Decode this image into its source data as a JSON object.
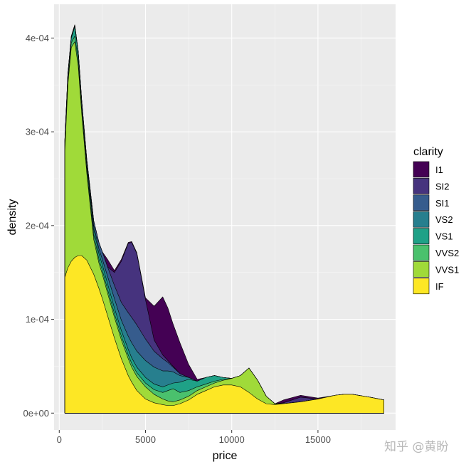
{
  "chart_data": {
    "type": "area",
    "stacked": true,
    "xlabel": "price",
    "ylabel": "density",
    "xlim": [
      -300,
      19500
    ],
    "ylim": [
      -1.8e-05,
      0.000436
    ],
    "x_ticks": [
      0,
      5000,
      10000,
      15000
    ],
    "x_tick_labels": [
      "0",
      "5000",
      "10000",
      "15000"
    ],
    "y_ticks": [
      0,
      0.0001,
      0.0002,
      0.0003,
      0.0004
    ],
    "y_tick_labels": [
      "0e+00",
      "1e-04",
      "2e-04",
      "3e-04",
      "4e-04"
    ],
    "grid": true,
    "legend_position": "right",
    "legend_title": "clarity",
    "x": [
      326,
      500,
      700,
      900,
      1100,
      1300,
      1600,
      2000,
      2300,
      2500,
      2800,
      3200,
      3600,
      4000,
      4200,
      4500,
      5000,
      5500,
      6000,
      6300,
      6600,
      7000,
      7500,
      8000,
      8500,
      9000,
      9500,
      10000,
      10500,
      11000,
      11500,
      12000,
      12500,
      13000,
      14000,
      15000,
      16000,
      16500,
      17000,
      18000,
      18823
    ],
    "series": [
      {
        "name": "IF",
        "color": "#FDE725",
        "values": [
          0.000145,
          0.000155,
          0.000162,
          0.000166,
          0.000168,
          0.000168,
          0.000163,
          0.000148,
          0.000133,
          0.000122,
          0.000104,
          8e-05,
          5.8e-05,
          4e-05,
          3.3e-05,
          2.4e-05,
          1.5e-05,
          1.1e-05,
          9e-06,
          8e-06,
          8e-06,
          1e-05,
          1.4e-05,
          2e-05,
          2.4e-05,
          2.8e-05,
          3e-05,
          3e-05,
          2.8e-05,
          2.2e-05,
          1.5e-05,
          1e-05,
          9e-06,
          1e-05,
          1.2e-05,
          1.5e-05,
          1.9e-05,
          2e-05,
          2e-05,
          1.7e-05,
          1.4e-05
        ]
      },
      {
        "name": "VVS1",
        "color": "#A0DA39",
        "values": [
          0.00028,
          0.00035,
          0.00039,
          0.000396,
          0.00037,
          0.00032,
          0.000255,
          0.000185,
          0.00016,
          0.000148,
          0.000128,
          0.000102,
          7.8e-05,
          5.8e-05,
          4.9e-05,
          3.9e-05,
          2.8e-05,
          2e-05,
          1.5e-05,
          1.3e-05,
          1.2e-05,
          1.4e-05,
          1.8e-05,
          2.4e-05,
          2.8e-05,
          3.2e-05,
          3.5e-05,
          3.7e-05,
          4e-05,
          4.8e-05,
          3.5e-05,
          1.8e-05,
          1e-05,
          1e-05,
          1.2e-05,
          1.5e-05,
          1.9e-05,
          2e-05,
          2e-05,
          1.7e-05,
          1.4e-05
        ]
      },
      {
        "name": "VVS2",
        "color": "#4AC16D",
        "values": [
          0.000285,
          0.000355,
          0.000395,
          0.000402,
          0.000376,
          0.000326,
          0.00026,
          0.00019,
          0.000164,
          0.000152,
          0.000132,
          0.000106,
          8.2e-05,
          6.2e-05,
          5.3e-05,
          4.3e-05,
          3.2e-05,
          2.5e-05,
          2.2e-05,
          2.4e-05,
          2.6e-05,
          2.2e-05,
          2.4e-05,
          2.8e-05,
          3.1e-05,
          3.4e-05,
          3.6e-05,
          3.7e-05,
          4e-05,
          4.8e-05,
          3.5e-05,
          1.8e-05,
          1e-05,
          1e-05,
          1.2e-05,
          1.5e-05,
          1.9e-05,
          2e-05,
          2e-05,
          1.7e-05,
          1.4e-05
        ]
      },
      {
        "name": "VS1",
        "color": "#1FA187",
        "values": [
          0.00029,
          0.00036,
          0.0004,
          0.000412,
          0.000384,
          0.000332,
          0.000266,
          0.000196,
          0.00017,
          0.000158,
          0.000138,
          0.000112,
          8.8e-05,
          6.8e-05,
          5.9e-05,
          4.9e-05,
          3.8e-05,
          3.1e-05,
          2.8e-05,
          3e-05,
          3.2e-05,
          3.3e-05,
          3.6e-05,
          3.4e-05,
          3.8e-05,
          4e-05,
          3.8e-05,
          3.7e-05,
          4e-05,
          4.8e-05,
          3.5e-05,
          1.8e-05,
          1e-05,
          1e-05,
          1.2e-05,
          1.5e-05,
          1.9e-05,
          2e-05,
          2e-05,
          1.7e-05,
          1.4e-05
        ]
      },
      {
        "name": "VS2",
        "color": "#277F8E",
        "values": [
          0.000291,
          0.000361,
          0.000401,
          0.000413,
          0.000385,
          0.000333,
          0.000268,
          0.0002,
          0.000175,
          0.000164,
          0.000146,
          0.000122,
          9.9e-05,
          8.2e-05,
          7.5e-05,
          6.6e-05,
          5.6e-05,
          4.9e-05,
          4.5e-05,
          4.5e-05,
          4.4e-05,
          4e-05,
          3.8e-05,
          3.4e-05,
          3.8e-05,
          4e-05,
          3.8e-05,
          3.7e-05,
          4e-05,
          4.8e-05,
          3.5e-05,
          1.8e-05,
          1e-05,
          1e-05,
          1.2e-05,
          1.5e-05,
          1.9e-05,
          2e-05,
          2e-05,
          1.7e-05,
          1.4e-05
        ]
      },
      {
        "name": "SI1",
        "color": "#365C8D",
        "values": [
          0.000292,
          0.000362,
          0.000402,
          0.000414,
          0.000386,
          0.000334,
          0.00027,
          0.000205,
          0.000182,
          0.000172,
          0.000156,
          0.000136,
          0.000118,
          0.000107,
          0.000102,
          9.4e-05,
          7.9e-05,
          6.6e-05,
          5.8e-05,
          5.4e-05,
          4.9e-05,
          4.2e-05,
          3.8e-05,
          3.4e-05,
          3.8e-05,
          4e-05,
          3.8e-05,
          3.7e-05,
          4e-05,
          4.8e-05,
          3.5e-05,
          1.8e-05,
          1e-05,
          1e-05,
          1.2e-05,
          1.5e-05,
          1.9e-05,
          2e-05,
          2e-05,
          1.7e-05,
          1.4e-05
        ]
      },
      {
        "name": "SI2",
        "color": "#46337E",
        "values": [
          0.000292,
          0.000362,
          0.000402,
          0.000414,
          0.000386,
          0.000334,
          0.00027,
          0.000205,
          0.000182,
          0.000172,
          0.000156,
          0.00015,
          0.000162,
          0.000181,
          0.000182,
          0.00017,
          0.000121,
          7.8e-05,
          6.2e-05,
          5.6e-05,
          5e-05,
          4.2e-05,
          3.8e-05,
          3.4e-05,
          3.8e-05,
          4e-05,
          3.8e-05,
          3.7e-05,
          4e-05,
          4.8e-05,
          3.5e-05,
          1.8e-05,
          1e-05,
          1.1e-05,
          1.7e-05,
          1.5e-05,
          1.9e-05,
          2e-05,
          2e-05,
          1.7e-05,
          1.4e-05
        ]
      },
      {
        "name": "I1",
        "color": "#440154",
        "values": [
          0.000292,
          0.000362,
          0.000402,
          0.000414,
          0.000386,
          0.000334,
          0.00027,
          0.000205,
          0.000182,
          0.000172,
          0.000164,
          0.000152,
          0.000164,
          0.000182,
          0.000183,
          0.000171,
          0.000123,
          0.000114,
          0.000124,
          0.000112,
          9.5e-05,
          7.5e-05,
          5.2e-05,
          3.6e-05,
          3.8e-05,
          4e-05,
          3.8e-05,
          3.7e-05,
          4e-05,
          4.8e-05,
          3.5e-05,
          1.8e-05,
          1e-05,
          1.4e-05,
          1.9e-05,
          1.6e-05,
          1.9e-05,
          2e-05,
          2e-05,
          1.7e-05,
          1.4e-05
        ]
      }
    ],
    "legend_order": [
      "I1",
      "SI2",
      "SI1",
      "VS2",
      "VS1",
      "VVS2",
      "VVS1",
      "IF"
    ]
  },
  "watermark": "知乎 @黄盼"
}
